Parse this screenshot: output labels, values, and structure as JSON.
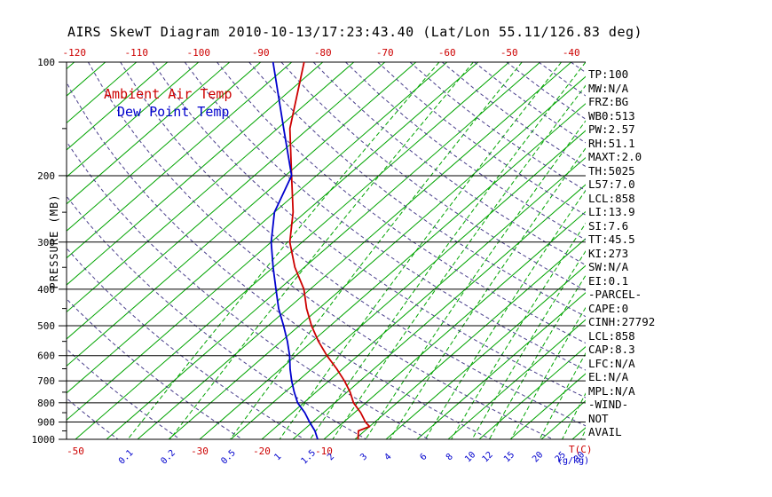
{
  "title": "AIRS SkewT Diagram 2010-10-13/17:23:43.40 (Lat/Lon 55.11/126.83 deg)",
  "legend": {
    "ambient": "Ambient Air Temp",
    "dew_point": "Dew Point Temp"
  },
  "pressure_axis_label": "PRESSURE (MB)",
  "units": {
    "temperature": "T(C)",
    "mixing_ratio": "(g/kg)"
  },
  "colors": {
    "ambient": "#cd0000",
    "dew_point": "#0000cd",
    "isotherm": "#00a400",
    "adiabat": "#483d8b",
    "axis": "#000000"
  },
  "stats": [
    "TP:100",
    "MW:N/A",
    "FRZ:BG",
    "WB0:513",
    "PW:2.57",
    "RH:51.1",
    "MAXT:2.0",
    "TH:5025",
    "L57:7.0",
    "LCL:858",
    "LI:13.9",
    "SI:7.6",
    "TT:45.5",
    "KI:273",
    "SW:N/A",
    "EI:0.1",
    "-PARCEL-",
    "CAPE:0",
    "CINH:27792",
    "LCL:858",
    "CAP:8.3",
    "LFC:N/A",
    "EL:N/A",
    "MPL:N/A",
    "-WIND-",
    "NOT",
    "AVAIL"
  ],
  "chart_data": {
    "type": "line",
    "diagram": "skew-t-log-p",
    "title": "AIRS SkewT Diagram 2010-10-13/17:23:43.40 (Lat/Lon 55.11/126.83 deg)",
    "y_axis": {
      "label": "PRESSURE (MB)",
      "scale": "log",
      "ticks": [
        100,
        200,
        300,
        400,
        500,
        600,
        700,
        800,
        900,
        1000
      ],
      "range": [
        100,
        1000
      ]
    },
    "x_axis": {
      "label": "T(C)",
      "top_ticks": [
        -120,
        -110,
        -100,
        -90,
        -80,
        -70,
        -60,
        -50,
        -40
      ],
      "bottom_ticks": [
        -50,
        -30,
        -20,
        -10
      ],
      "skew_deg": 45
    },
    "mixing_ratio_axis": {
      "label": "(g/kg)",
      "ticks": [
        0.1,
        0.2,
        0.5,
        1,
        1.5,
        2,
        3,
        4,
        6,
        8,
        10,
        12,
        15,
        20,
        25,
        30,
        40
      ]
    },
    "isotherms_c": {
      "min": -120,
      "max": 30,
      "step": 5
    },
    "dry_adiabats_k": {
      "min": 230,
      "max": 450,
      "step": 10
    },
    "series": [
      {
        "name": "Ambient Air Temp",
        "color_key": "ambient",
        "points_p_mb_t_c": [
          [
            100,
            -83
          ],
          [
            150,
            -73
          ],
          [
            200,
            -64
          ],
          [
            250,
            -57
          ],
          [
            300,
            -52
          ],
          [
            350,
            -46.5
          ],
          [
            400,
            -41
          ],
          [
            450,
            -37
          ],
          [
            500,
            -33
          ],
          [
            550,
            -29
          ],
          [
            600,
            -25
          ],
          [
            650,
            -21
          ],
          [
            700,
            -17.5
          ],
          [
            750,
            -14.5
          ],
          [
            800,
            -12
          ],
          [
            850,
            -9
          ],
          [
            900,
            -6.5
          ],
          [
            925,
            -5
          ],
          [
            950,
            -6
          ],
          [
            1000,
            -4.5
          ]
        ]
      },
      {
        "name": "Dew Point Temp",
        "color_key": "dew_point",
        "points_p_mb_t_c": [
          [
            100,
            -88
          ],
          [
            150,
            -74
          ],
          [
            200,
            -64
          ],
          [
            250,
            -60
          ],
          [
            300,
            -55
          ],
          [
            350,
            -50
          ],
          [
            400,
            -45.5
          ],
          [
            450,
            -41.5
          ],
          [
            500,
            -37.5
          ],
          [
            550,
            -34
          ],
          [
            600,
            -31
          ],
          [
            650,
            -28.5
          ],
          [
            700,
            -26
          ],
          [
            750,
            -23.5
          ],
          [
            800,
            -21
          ],
          [
            850,
            -18
          ],
          [
            900,
            -15.5
          ],
          [
            950,
            -13
          ],
          [
            1000,
            -11
          ]
        ]
      }
    ]
  }
}
